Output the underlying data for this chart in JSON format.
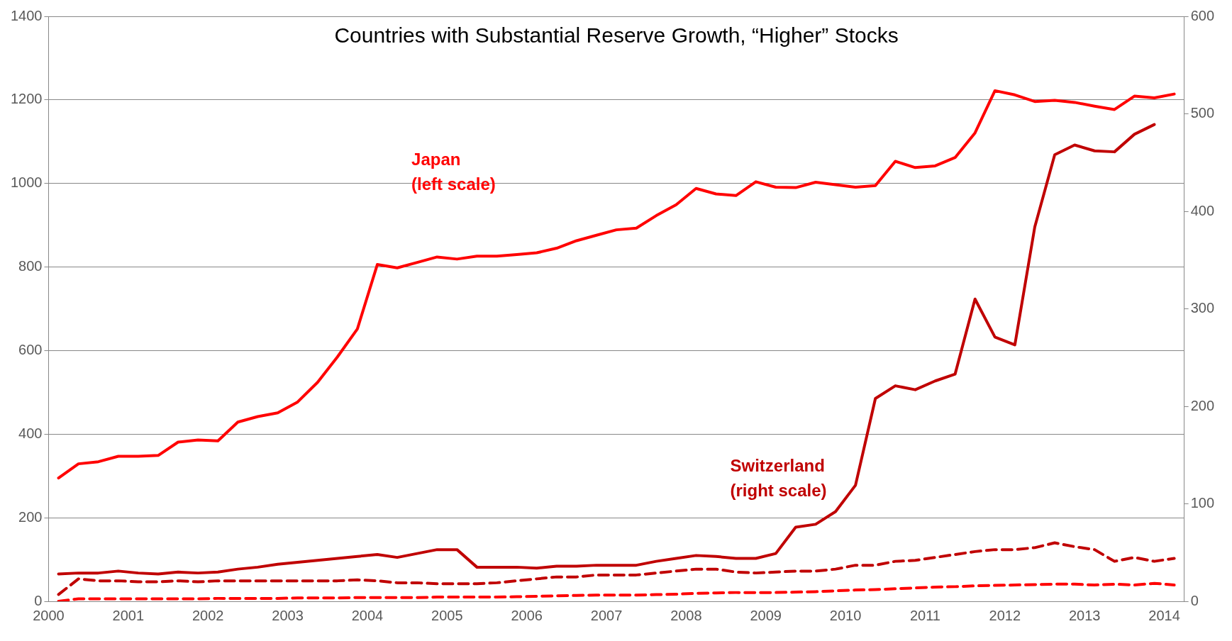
{
  "chart_data": {
    "type": "line",
    "title": "Countries with Substantial Reserve Growth, “Higher” Stocks",
    "x": [
      2000.125,
      2000.375,
      2000.625,
      2000.875,
      2001.125,
      2001.375,
      2001.625,
      2001.875,
      2002.125,
      2002.375,
      2002.625,
      2002.875,
      2003.125,
      2003.375,
      2003.625,
      2003.875,
      2004.125,
      2004.375,
      2004.625,
      2004.875,
      2005.125,
      2005.375,
      2005.625,
      2005.875,
      2006.125,
      2006.375,
      2006.625,
      2006.875,
      2007.125,
      2007.375,
      2007.625,
      2007.875,
      2008.125,
      2008.375,
      2008.625,
      2008.875,
      2009.125,
      2009.375,
      2009.625,
      2009.875,
      2010.125,
      2010.375,
      2010.625,
      2010.875,
      2011.125,
      2011.375,
      2011.625,
      2011.875,
      2012.125,
      2012.375,
      2012.625,
      2012.875,
      2013.125,
      2013.375,
      2013.625,
      2013.875,
      2014.125
    ],
    "series": [
      {
        "name": "Japan (left scale)",
        "color": "#ff0000",
        "line_style": "solid",
        "values": [
          295,
          329,
          334,
          347,
          347,
          349,
          381,
          386,
          384,
          429,
          442,
          451,
          477,
          524,
          585,
          652,
          806,
          798,
          811,
          824,
          819,
          826,
          826,
          830,
          834,
          845,
          863,
          876,
          889,
          893,
          923,
          949,
          988,
          975,
          971,
          1004,
          991,
          990,
          1003,
          997,
          991,
          995,
          1053,
          1038,
          1042,
          1062,
          1121,
          1222,
          1212,
          1196,
          1199,
          1194,
          1185,
          1177,
          1209,
          1205,
          1214
        ]
      },
      {
        "name": "Switzerland (right scale)",
        "color": "#c00000",
        "axis": "y2",
        "line_style": "solid",
        "values": [
          28,
          29,
          29,
          31,
          29,
          28,
          30,
          29,
          30,
          33,
          35,
          38,
          40,
          42,
          44,
          46,
          48,
          45,
          49,
          53,
          53,
          35,
          35,
          35,
          34,
          36,
          36,
          37,
          37,
          37,
          41,
          44,
          47,
          46,
          44,
          44,
          49,
          76,
          79,
          92,
          119,
          208,
          221,
          217,
          226,
          233,
          310,
          271,
          263,
          384,
          458,
          468,
          462,
          461,
          479,
          489,
          null
        ]
      },
      {
        "color": "#c00000",
        "axis": "y2",
        "line_style": "dashed",
        "values": [
          7,
          23,
          21,
          21,
          20,
          20,
          21,
          20,
          21,
          21,
          21,
          21,
          21,
          21,
          21,
          22,
          21,
          19,
          19,
          18,
          18,
          18,
          19,
          21,
          23,
          25,
          25,
          27,
          27,
          27,
          29,
          31,
          33,
          33,
          30,
          29,
          30,
          31,
          31,
          33,
          37,
          37,
          41,
          42,
          45,
          48,
          51,
          53,
          53,
          55,
          60,
          56,
          53,
          41,
          45,
          41,
          44
        ]
      },
      {
        "color": "#ff0000",
        "line_style": "dashed",
        "values": [
          0,
          6,
          6,
          6,
          6,
          6,
          6,
          6,
          7,
          7,
          7,
          7,
          8,
          8,
          8,
          9,
          9,
          9,
          9,
          10,
          10,
          10,
          10,
          11,
          12,
          13,
          14,
          15,
          15,
          15,
          16,
          17,
          19,
          20,
          21,
          21,
          21,
          22,
          23,
          25,
          27,
          28,
          30,
          32,
          34,
          35,
          37,
          38,
          39,
          40,
          41,
          41,
          39,
          41,
          39,
          43,
          39
        ]
      }
    ],
    "xlim": [
      2000,
      2014.25
    ],
    "xticks": [
      2000,
      2001,
      2002,
      2003,
      2004,
      2005,
      2006,
      2007,
      2008,
      2009,
      2010,
      2011,
      2012,
      2013,
      2014
    ],
    "ylim": [
      0,
      1400
    ],
    "yticks": [
      0,
      200,
      400,
      600,
      800,
      1000,
      1200,
      1400
    ],
    "y2lim": [
      0,
      600
    ],
    "y2ticks": [
      0,
      100,
      200,
      300,
      400,
      500,
      600
    ],
    "grid": "y",
    "legend": false,
    "marker": "none"
  }
}
